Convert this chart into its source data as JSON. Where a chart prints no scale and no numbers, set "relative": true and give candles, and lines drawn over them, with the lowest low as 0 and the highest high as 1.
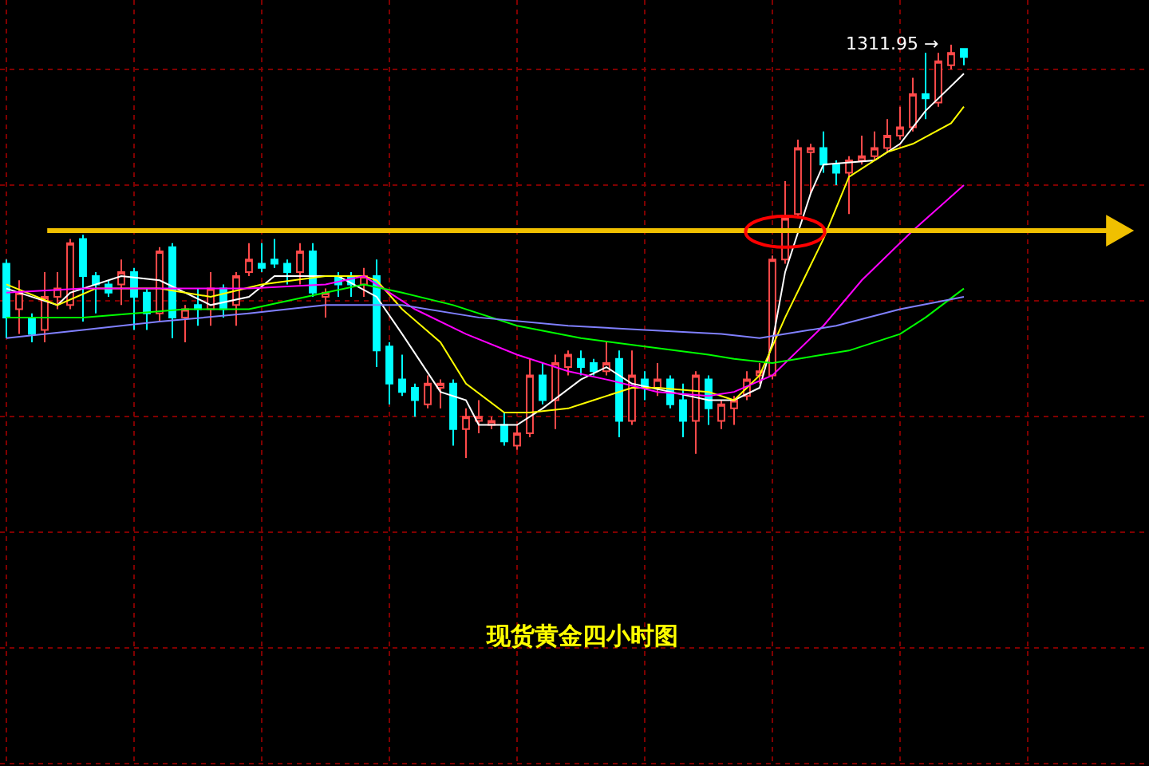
{
  "chart_data": {
    "type": "candlestick",
    "title": "现货黄金四小时图",
    "relative": true,
    "categories": [
      null,
      null,
      null,
      null,
      null,
      null,
      null,
      null,
      null,
      null,
      null,
      null,
      null,
      null,
      null,
      null,
      null,
      null,
      null,
      null,
      null,
      null,
      null,
      null,
      null,
      null,
      null,
      null,
      null,
      null,
      null,
      null,
      null,
      null,
      null,
      null,
      null,
      null,
      null,
      null,
      null,
      null,
      null,
      null,
      null,
      null,
      null,
      null,
      null,
      null,
      null,
      null,
      null,
      null,
      null,
      null,
      null,
      null,
      null,
      null,
      null,
      null,
      null,
      null,
      null,
      null,
      null,
      null,
      null,
      null,
      null,
      null,
      null,
      null,
      null,
      null
    ],
    "colors": [
      "#00ffff",
      "#ff4a4a",
      "#00ffff",
      "#ff4a4a",
      "#ff4a4a",
      "#ff4a4a",
      "#00ffff",
      "#00ffff",
      "#00ffff",
      "#ff4a4a",
      "#00ffff",
      "#00ffff",
      "#ff4a4a",
      "#00ffff",
      "#ff4a4a",
      "#00ffff",
      "#ff4a4a",
      "#00ffff",
      "#ff4a4a",
      "#ff4a4a",
      "#00ffff",
      "#00ffff",
      "#00ffff",
      "#ff4a4a",
      "#00ffff",
      "#ff4a4a",
      "#00ffff",
      "#00ffff",
      "#ff4a4a",
      "#00ffff",
      "#00ffff",
      "#00ffff",
      "#00ffff",
      "#ff4a4a",
      "#ff4a4a",
      "#00ffff",
      "#ff4a4a",
      "#ff4a4a",
      "#ff4a4a",
      "#00ffff",
      "#ff4a4a",
      "#ff4a4a",
      "#00ffff",
      "#ff4a4a",
      "#ff4a4a",
      "#00ffff",
      "#00ffff",
      "#ff4a4a",
      "#00ffff",
      "#ff4a4a",
      "#00ffff",
      "#ff4a4a",
      "#00ffff",
      "#00ffff",
      "#ff4a4a",
      "#00ffff",
      "#ff4a4a",
      "#ff4a4a",
      "#ff4a4a",
      "#ff4a4a",
      "#ff4a4a",
      "#ff4a4a",
      "#ff4a4a",
      "#ff4a4a",
      "#00ffff",
      "#00ffff",
      "#ff4a4a",
      "#ff4a4a",
      "#ff4a4a",
      "#ff4a4a",
      "#ff4a4a",
      "#ff4a4a",
      "#00ffff",
      "#ff4a4a",
      "#ff4a4a",
      "#00ffff"
    ],
    "ohlc": [
      [
        0.47,
        0.48,
        0.29,
        0.34
      ],
      [
        0.36,
        0.43,
        0.3,
        0.4
      ],
      [
        0.34,
        0.35,
        0.28,
        0.3
      ],
      [
        0.31,
        0.45,
        0.28,
        0.39
      ],
      [
        0.39,
        0.45,
        0.36,
        0.41
      ],
      [
        0.37,
        0.53,
        0.36,
        0.52
      ],
      [
        0.53,
        0.54,
        0.33,
        0.44
      ],
      [
        0.44,
        0.45,
        0.35,
        0.42
      ],
      [
        0.42,
        0.43,
        0.39,
        0.4
      ],
      [
        0.42,
        0.48,
        0.37,
        0.45
      ],
      [
        0.45,
        0.46,
        0.31,
        0.39
      ],
      [
        0.4,
        0.41,
        0.31,
        0.35
      ],
      [
        0.35,
        0.51,
        0.33,
        0.5
      ],
      [
        0.51,
        0.52,
        0.29,
        0.34
      ],
      [
        0.34,
        0.37,
        0.28,
        0.36
      ],
      [
        0.37,
        0.41,
        0.32,
        0.36
      ],
      [
        0.36,
        0.45,
        0.32,
        0.41
      ],
      [
        0.41,
        0.42,
        0.34,
        0.36
      ],
      [
        0.37,
        0.45,
        0.32,
        0.44
      ],
      [
        0.45,
        0.52,
        0.44,
        0.48
      ],
      [
        0.47,
        0.52,
        0.45,
        0.46
      ],
      [
        0.48,
        0.53,
        0.46,
        0.47
      ],
      [
        0.47,
        0.48,
        0.42,
        0.45
      ],
      [
        0.45,
        0.52,
        0.42,
        0.5
      ],
      [
        0.5,
        0.52,
        0.39,
        0.4
      ],
      [
        0.39,
        0.41,
        0.34,
        0.4
      ],
      [
        0.44,
        0.45,
        0.39,
        0.42
      ],
      [
        0.44,
        0.45,
        0.39,
        0.42
      ],
      [
        0.42,
        0.46,
        0.39,
        0.44
      ],
      [
        0.44,
        0.48,
        0.22,
        0.26
      ],
      [
        0.27,
        0.28,
        0.13,
        0.18
      ],
      [
        0.19,
        0.25,
        0.15,
        0.16
      ],
      [
        0.17,
        0.18,
        0.1,
        0.14
      ],
      [
        0.13,
        0.2,
        0.12,
        0.18
      ],
      [
        0.17,
        0.19,
        0.12,
        0.18
      ],
      [
        0.18,
        0.19,
        0.03,
        0.07
      ],
      [
        0.07,
        0.12,
        0.0,
        0.1
      ],
      [
        0.09,
        0.14,
        0.06,
        0.1
      ],
      [
        0.08,
        0.1,
        0.07,
        0.09
      ],
      [
        0.08,
        0.11,
        0.03,
        0.04
      ],
      [
        0.03,
        0.08,
        0.02,
        0.06
      ],
      [
        0.06,
        0.24,
        0.05,
        0.2
      ],
      [
        0.2,
        0.23,
        0.13,
        0.14
      ],
      [
        0.14,
        0.25,
        0.07,
        0.23
      ],
      [
        0.22,
        0.26,
        0.2,
        0.25
      ],
      [
        0.24,
        0.26,
        0.2,
        0.22
      ],
      [
        0.23,
        0.24,
        0.2,
        0.21
      ],
      [
        0.21,
        0.28,
        0.2,
        0.23
      ],
      [
        0.24,
        0.26,
        0.05,
        0.09
      ],
      [
        0.09,
        0.26,
        0.08,
        0.2
      ],
      [
        0.19,
        0.21,
        0.14,
        0.17
      ],
      [
        0.17,
        0.23,
        0.15,
        0.19
      ],
      [
        0.19,
        0.2,
        0.12,
        0.13
      ],
      [
        0.14,
        0.18,
        0.05,
        0.09
      ],
      [
        0.09,
        0.21,
        0.01,
        0.2
      ],
      [
        0.19,
        0.2,
        0.08,
        0.12
      ],
      [
        0.09,
        0.14,
        0.07,
        0.13
      ],
      [
        0.12,
        0.15,
        0.08,
        0.14
      ],
      [
        0.15,
        0.21,
        0.14,
        0.19
      ],
      [
        0.2,
        0.23,
        0.18,
        0.21
      ],
      [
        0.2,
        0.49,
        0.19,
        0.48
      ],
      [
        0.48,
        0.67,
        0.47,
        0.58
      ],
      [
        0.59,
        0.77,
        0.58,
        0.75
      ],
      [
        0.74,
        0.76,
        0.64,
        0.75
      ],
      [
        0.75,
        0.79,
        0.69,
        0.71
      ],
      [
        0.71,
        0.72,
        0.66,
        0.69
      ],
      [
        0.69,
        0.73,
        0.59,
        0.72
      ],
      [
        0.72,
        0.78,
        0.71,
        0.73
      ],
      [
        0.73,
        0.79,
        0.72,
        0.75
      ],
      [
        0.75,
        0.82,
        0.74,
        0.78
      ],
      [
        0.78,
        0.85,
        0.77,
        0.8
      ],
      [
        0.8,
        0.92,
        0.79,
        0.88
      ],
      [
        0.88,
        0.98,
        0.82,
        0.87
      ],
      [
        0.86,
        0.98,
        0.85,
        0.96
      ],
      [
        0.95,
        1.0,
        0.94,
        0.98
      ],
      [
        0.99,
        0.99,
        0.95,
        0.97
      ]
    ],
    "series": [
      {
        "type": "line",
        "color": "#ffffff",
        "values": [
          0.41,
          null,
          null,
          null,
          0.37,
          0.4,
          null,
          null,
          null,
          0.44,
          null,
          null,
          0.43,
          null,
          null,
          null,
          0.37,
          null,
          null,
          0.39,
          null,
          0.44,
          null,
          null,
          null,
          null,
          0.44,
          null,
          null,
          0.39,
          null,
          0.3,
          null,
          null,
          0.16,
          null,
          0.14,
          0.08,
          null,
          null,
          0.08,
          null,
          0.12,
          null,
          null,
          0.19,
          null,
          0.22,
          null,
          0.18,
          null,
          null,
          0.16,
          null,
          null,
          0.14,
          null,
          0.14,
          null,
          0.17,
          0.28,
          0.45,
          null,
          0.64,
          0.71,
          null,
          null,
          null,
          0.72,
          null,
          0.76,
          null,
          0.84,
          null,
          null,
          0.93
        ]
      },
      {
        "type": "line",
        "color": "#ffff00",
        "values": [
          0.42,
          null,
          null,
          null,
          0.37,
          null,
          null,
          0.41,
          null,
          null,
          null,
          null,
          0.41,
          null,
          null,
          null,
          0.39,
          null,
          null,
          null,
          0.42,
          null,
          null,
          null,
          null,
          0.44,
          null,
          null,
          0.44,
          0.43,
          null,
          0.36,
          null,
          null,
          0.28,
          null,
          0.18,
          null,
          null,
          0.11,
          null,
          0.11,
          null,
          null,
          0.12,
          null,
          0.14,
          null,
          null,
          0.17,
          null,
          0.17,
          null,
          null,
          null,
          0.16,
          null,
          0.14,
          null,
          0.2,
          null,
          0.34,
          null,
          null,
          0.53,
          null,
          0.68,
          null,
          null,
          0.74,
          null,
          0.76,
          null,
          null,
          0.81,
          0.85
        ]
      },
      {
        "type": "line",
        "color": "#ff00ff",
        "values": [
          0.4,
          null,
          null,
          null,
          null,
          null,
          0.41,
          null,
          null,
          null,
          null,
          null,
          0.41,
          null,
          null,
          null,
          null,
          null,
          null,
          0.41,
          null,
          null,
          null,
          null,
          null,
          0.42,
          null,
          null,
          0.44,
          0.42,
          null,
          null,
          0.36,
          null,
          null,
          null,
          0.3,
          null,
          null,
          null,
          0.25,
          null,
          null,
          null,
          0.21,
          null,
          null,
          0.19,
          null,
          null,
          null,
          0.16,
          null,
          null,
          null,
          0.15,
          null,
          0.16,
          null,
          null,
          0.2,
          null,
          null,
          null,
          0.32,
          null,
          null,
          0.43,
          null,
          null,
          null,
          0.55,
          null,
          null,
          null,
          0.66
        ]
      },
      {
        "type": "line",
        "color": "#00ff00",
        "values": [
          0.34,
          null,
          null,
          null,
          null,
          null,
          0.34,
          null,
          null,
          null,
          0.35,
          null,
          null,
          null,
          0.36,
          null,
          null,
          null,
          null,
          0.36,
          null,
          null,
          null,
          null,
          null,
          0.4,
          null,
          null,
          0.42,
          null,
          null,
          0.4,
          null,
          null,
          null,
          0.37,
          null,
          null,
          null,
          null,
          0.32,
          null,
          null,
          null,
          null,
          0.29,
          null,
          null,
          null,
          null,
          0.27,
          null,
          null,
          null,
          null,
          0.25,
          null,
          0.24,
          null,
          null,
          0.23,
          null,
          0.24,
          null,
          null,
          null,
          0.26,
          null,
          null,
          null,
          0.3,
          null,
          0.34,
          null,
          null,
          0.41
        ]
      },
      {
        "type": "line",
        "color": "#8080ff",
        "values": [
          0.29,
          null,
          null,
          null,
          null,
          null,
          0.31,
          null,
          null,
          null,
          null,
          null,
          0.33,
          null,
          null,
          null,
          null,
          null,
          null,
          0.35,
          null,
          null,
          null,
          null,
          null,
          0.37,
          null,
          null,
          0.37,
          null,
          null,
          0.37,
          null,
          null,
          null,
          null,
          null,
          0.34,
          null,
          null,
          null,
          null,
          null,
          null,
          0.32,
          null,
          null,
          null,
          null,
          null,
          0.31,
          null,
          null,
          null,
          null,
          null,
          0.3,
          null,
          null,
          0.29,
          null,
          0.3,
          null,
          null,
          null,
          0.32,
          null,
          null,
          null,
          null,
          0.36,
          null,
          null,
          null,
          null,
          0.39
        ]
      }
    ],
    "ref_lines": [
      {
        "axis": "y",
        "value": 0.55,
        "color": "#f0c000"
      }
    ],
    "annotations": [
      "1311.95 →"
    ],
    "grid": true,
    "tick_labels": false
  }
}
